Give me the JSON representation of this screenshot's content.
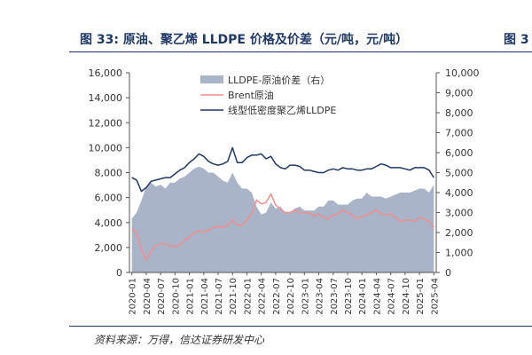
{
  "figure": {
    "title": "图 33:  原油、聚乙烯 LLDPE 价格及价差（元/吨，元/吨）",
    "next_title_fragment": "图 3",
    "source": "资料来源：万得，信达证券研发中心"
  },
  "chart_data": {
    "type": "area",
    "title": "图 33:  原油、聚乙烯 LLDPE 价格及价差（元/吨，元/吨）",
    "x": [
      "2020-01",
      "2020-02",
      "2020-03",
      "2020-04",
      "2020-05",
      "2020-06",
      "2020-07",
      "2020-08",
      "2020-09",
      "2020-10",
      "2020-11",
      "2020-12",
      "2021-01",
      "2021-02",
      "2021-03",
      "2021-04",
      "2021-05",
      "2021-06",
      "2021-07",
      "2021-08",
      "2021-09",
      "2021-10",
      "2021-11",
      "2021-12",
      "2022-01",
      "2022-02",
      "2022-03",
      "2022-04",
      "2022-05",
      "2022-06",
      "2022-07",
      "2022-08",
      "2022-09",
      "2022-10",
      "2022-11",
      "2022-12",
      "2023-01",
      "2023-02",
      "2023-03",
      "2023-04",
      "2023-05",
      "2023-06",
      "2023-07",
      "2023-08",
      "2023-09",
      "2023-10",
      "2023-11",
      "2023-12",
      "2024-01",
      "2024-02",
      "2024-03",
      "2024-04",
      "2024-05",
      "2024-06",
      "2024-07",
      "2024-08",
      "2024-09",
      "2024-10",
      "2024-11",
      "2024-12",
      "2025-01",
      "2025-02",
      "2025-03",
      "2025-04"
    ],
    "x_tick_labels": [
      "2020-01",
      "2020-04",
      "2020-07",
      "2020-10",
      "2021-01",
      "2021-04",
      "2021-07",
      "2021-10",
      "2022-01",
      "2022-04",
      "2022-07",
      "2022-10",
      "2023-01",
      "2023-04",
      "2023-07",
      "2023-10",
      "2024-01",
      "2024-04",
      "2024-07",
      "2024-10",
      "2025-01",
      "2025-04"
    ],
    "y_left": {
      "min": 0,
      "max": 16000,
      "ticks": [
        "0",
        "2,000",
        "4,000",
        "6,000",
        "8,000",
        "10,000",
        "12,000",
        "14,000",
        "16,000"
      ]
    },
    "y_right": {
      "min": 0,
      "max": 10000,
      "ticks": [
        "0",
        "1,000",
        "2,000",
        "3,000",
        "4,000",
        "5,000",
        "6,000",
        "7,000",
        "8,000",
        "9,000",
        "10,000"
      ]
    },
    "legend_position": "top-center",
    "series": [
      {
        "name": "LLDPE-原油价差（右）",
        "type": "area",
        "axis": "right",
        "color": "#aab4c8",
        "values": [
          2700,
          3000,
          3600,
          4300,
          4500,
          4300,
          4400,
          4200,
          4500,
          4500,
          4700,
          4800,
          5000,
          5200,
          5300,
          5200,
          5000,
          5000,
          4800,
          4600,
          4500,
          5000,
          4500,
          4200,
          4200,
          4000,
          3300,
          2900,
          3000,
          3500,
          3200,
          3300,
          3000,
          3000,
          3200,
          3300,
          3100,
          3100,
          3100,
          3300,
          3300,
          3600,
          3600,
          3400,
          3400,
          3400,
          3600,
          3700,
          3700,
          4000,
          3800,
          3800,
          3800,
          3700,
          3800,
          3900,
          4000,
          4000,
          4000,
          4100,
          4200,
          4200,
          4000,
          4400
        ]
      },
      {
        "name": "Brent原油",
        "type": "line",
        "axis": "left",
        "color": "#f28e8e",
        "values": [
          3500,
          3200,
          1800,
          1000,
          1700,
          2200,
          2300,
          2300,
          2100,
          2100,
          2200,
          2600,
          2800,
          3200,
          3300,
          3200,
          3400,
          3600,
          3700,
          3600,
          3800,
          4200,
          3800,
          3800,
          4200,
          4700,
          5800,
          5500,
          5600,
          6300,
          5400,
          5100,
          4800,
          4800,
          5000,
          4800,
          4800,
          4800,
          4500,
          4700,
          4400,
          4300,
          4600,
          4700,
          5000,
          4800,
          4600,
          4300,
          4500,
          4600,
          4800,
          5000,
          4700,
          4600,
          4700,
          4400,
          4100,
          4200,
          4200,
          4100,
          4400,
          4300,
          4100,
          3600
        ]
      },
      {
        "name": "线型低密度聚乙烯LLDPE",
        "type": "line",
        "axis": "left",
        "color": "#203864",
        "values": [
          7600,
          7400,
          6500,
          6800,
          7300,
          7400,
          7500,
          7600,
          7600,
          7900,
          8200,
          8400,
          8800,
          9100,
          9500,
          9300,
          8900,
          8700,
          8600,
          8700,
          8900,
          10000,
          8800,
          8800,
          9200,
          9400,
          9400,
          9500,
          9100,
          9300,
          8700,
          8400,
          8300,
          8600,
          8600,
          8500,
          8200,
          8200,
          8100,
          8000,
          8000,
          8200,
          8300,
          8200,
          8400,
          8300,
          8300,
          8200,
          8200,
          8300,
          8300,
          8500,
          8700,
          8600,
          8400,
          8400,
          8400,
          8300,
          8200,
          8400,
          8400,
          8400,
          8200,
          7600
        ]
      }
    ]
  }
}
